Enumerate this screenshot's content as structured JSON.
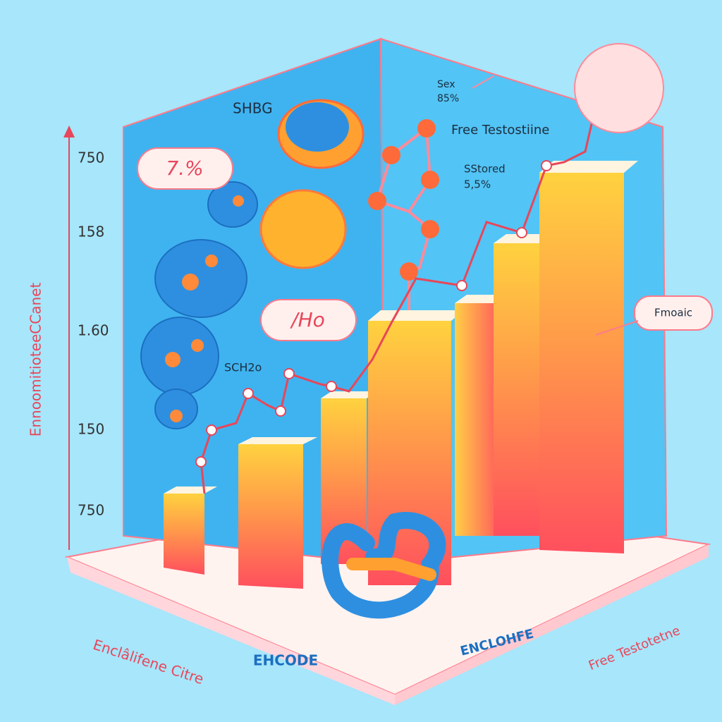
{
  "bubbles": {
    "left_top": "7.%",
    "left_mid": "/Ho"
  },
  "labels": {
    "shbg": "SHBG",
    "sch2o": "SCH2o",
    "sex": "Sex",
    "sex_value": "85%",
    "free_testosterone_top": "Free Testostiine",
    "stored": "SStored",
    "stored_value": "5,5%",
    "callout": "Fmoaic"
  },
  "axis": {
    "title": "EnnoomitioteeCCanet",
    "ticks": [
      "750",
      "158",
      "1.60",
      "150",
      "750"
    ]
  },
  "floor_labels": {
    "front_left": "EHCODE",
    "front_right": "ENCLOHFE",
    "bottom_left": "Enclâlifene Citre",
    "bottom_right": "Free Testotetne"
  }
}
